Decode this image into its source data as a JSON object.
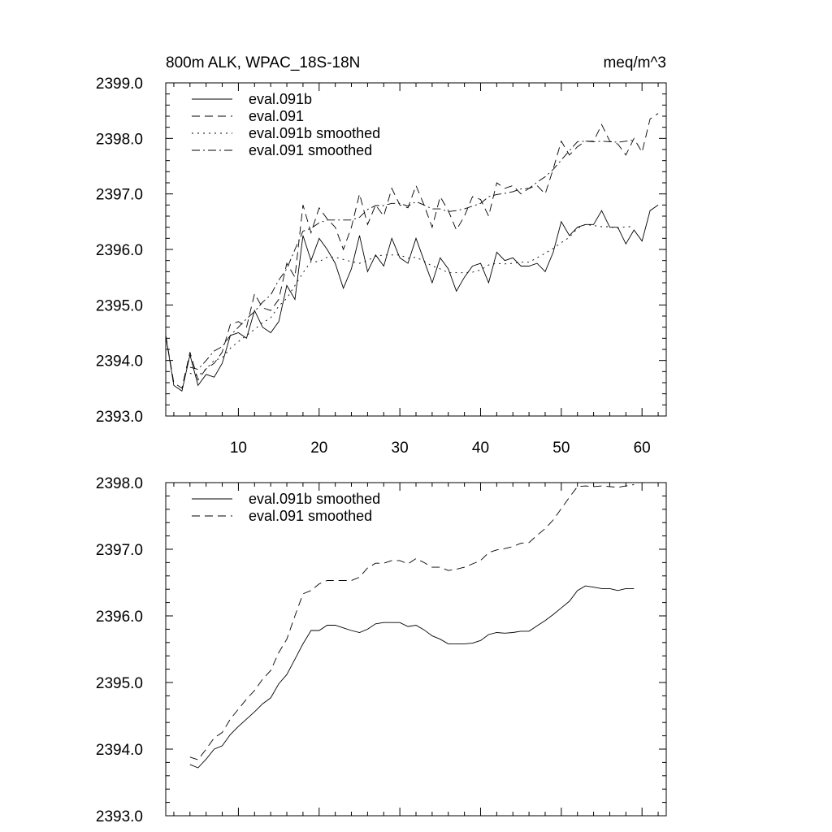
{
  "chart_data": [
    {
      "type": "line",
      "title": "800m ALK, WPAC_18S-18N",
      "units": "meq/m^3",
      "xlim": [
        1,
        63
      ],
      "ylim": [
        2393.0,
        2399.0
      ],
      "x_tick_labels": [
        "10",
        "20",
        "30",
        "40",
        "50",
        "60"
      ],
      "x_ticks": [
        10,
        20,
        30,
        40,
        50,
        60
      ],
      "y_tick_labels": [
        "2393.0",
        "2394.0",
        "2395.0",
        "2396.0",
        "2397.0",
        "2398.0",
        "2399.0"
      ],
      "y_ticks": [
        2393.0,
        2394.0,
        2395.0,
        2396.0,
        2397.0,
        2398.0,
        2399.0
      ],
      "legend_position": "top-left",
      "series": [
        {
          "name": "eval.091b",
          "style": "solid",
          "x": [
            1,
            2,
            3,
            4,
            5,
            6,
            7,
            8,
            9,
            10,
            11,
            12,
            13,
            14,
            15,
            16,
            17,
            18,
            19,
            20,
            21,
            22,
            23,
            24,
            25,
            26,
            27,
            28,
            29,
            30,
            31,
            32,
            33,
            34,
            35,
            36,
            37,
            38,
            39,
            40,
            41,
            42,
            43,
            44,
            45,
            46,
            47,
            48,
            49,
            50,
            51,
            52,
            53,
            54,
            55,
            56,
            57,
            58,
            59,
            60,
            61,
            62
          ],
          "values": [
            2394.45,
            2393.55,
            2393.45,
            2394.1,
            2393.55,
            2393.75,
            2393.7,
            2393.95,
            2394.45,
            2394.5,
            2394.4,
            2394.9,
            2394.6,
            2394.5,
            2394.7,
            2395.35,
            2395.1,
            2396.25,
            2395.8,
            2396.2,
            2396.0,
            2395.75,
            2395.3,
            2395.65,
            2396.25,
            2395.6,
            2395.9,
            2395.7,
            2396.2,
            2395.85,
            2395.75,
            2396.2,
            2395.8,
            2395.4,
            2395.85,
            2395.65,
            2395.25,
            2395.5,
            2395.7,
            2395.75,
            2395.4,
            2395.95,
            2395.8,
            2395.85,
            2395.7,
            2395.7,
            2395.75,
            2395.6,
            2395.95,
            2396.5,
            2396.25,
            2396.4,
            2396.45,
            2396.45,
            2396.7,
            2396.4,
            2396.4,
            2396.1,
            2396.35,
            2396.15,
            2396.7,
            2396.8
          ]
        },
        {
          "name": "eval.091",
          "style": "dashed",
          "x": [
            1,
            2,
            3,
            4,
            5,
            6,
            7,
            8,
            9,
            10,
            11,
            12,
            13,
            14,
            15,
            16,
            17,
            18,
            19,
            20,
            21,
            22,
            23,
            24,
            25,
            26,
            27,
            28,
            29,
            30,
            31,
            32,
            33,
            34,
            35,
            36,
            37,
            38,
            39,
            40,
            41,
            42,
            43,
            44,
            45,
            46,
            47,
            48,
            49,
            50,
            51,
            52,
            53,
            54,
            55,
            56,
            57,
            58,
            59,
            60,
            61,
            62
          ],
          "values": [
            2394.45,
            2393.6,
            2393.5,
            2394.15,
            2393.65,
            2393.85,
            2393.95,
            2394.15,
            2394.65,
            2394.7,
            2394.6,
            2395.2,
            2394.95,
            2394.9,
            2395.1,
            2395.75,
            2395.5,
            2396.8,
            2396.3,
            2396.75,
            2396.55,
            2396.4,
            2396.0,
            2396.4,
            2397.0,
            2396.45,
            2396.8,
            2396.6,
            2397.1,
            2396.8,
            2396.75,
            2397.15,
            2396.8,
            2396.4,
            2396.95,
            2396.7,
            2396.35,
            2396.6,
            2396.95,
            2396.9,
            2396.6,
            2397.2,
            2397.1,
            2397.15,
            2397.0,
            2397.1,
            2397.15,
            2397.0,
            2397.45,
            2397.95,
            2397.7,
            2397.85,
            2397.95,
            2397.95,
            2398.25,
            2397.95,
            2397.9,
            2397.7,
            2398.0,
            2397.75,
            2398.35,
            2398.45
          ]
        },
        {
          "name": "eval.091b smoothed",
          "style": "dotted",
          "x": [
            4,
            5,
            6,
            7,
            8,
            9,
            10,
            11,
            12,
            13,
            14,
            15,
            16,
            17,
            18,
            19,
            20,
            21,
            22,
            23,
            24,
            25,
            26,
            27,
            28,
            29,
            30,
            31,
            32,
            33,
            34,
            35,
            36,
            37,
            38,
            39,
            40,
            41,
            42,
            43,
            44,
            45,
            46,
            47,
            48,
            49,
            50,
            51,
            52,
            53,
            54,
            55,
            56,
            57,
            58,
            59
          ],
          "values": [
            2393.77,
            2393.72,
            2393.85,
            2394.0,
            2394.05,
            2394.22,
            2394.34,
            2394.45,
            2394.56,
            2394.68,
            2394.77,
            2394.98,
            2395.12,
            2395.35,
            2395.58,
            2395.78,
            2395.78,
            2395.86,
            2395.86,
            2395.82,
            2395.78,
            2395.75,
            2395.8,
            2395.88,
            2395.9,
            2395.9,
            2395.9,
            2395.84,
            2395.86,
            2395.79,
            2395.7,
            2395.65,
            2395.58,
            2395.58,
            2395.58,
            2395.59,
            2395.63,
            2395.72,
            2395.75,
            2395.74,
            2395.75,
            2395.77,
            2395.77,
            2395.85,
            2395.93,
            2396.02,
            2396.12,
            2396.22,
            2396.38,
            2396.45,
            2396.43,
            2396.41,
            2396.41,
            2396.38,
            2396.41,
            2396.41
          ]
        },
        {
          "name": "eval.091 smoothed",
          "style": "dash-dot",
          "x": [
            4,
            5,
            6,
            7,
            8,
            9,
            10,
            11,
            12,
            13,
            14,
            15,
            16,
            17,
            18,
            19,
            20,
            21,
            22,
            23,
            24,
            25,
            26,
            27,
            28,
            29,
            30,
            31,
            32,
            33,
            34,
            35,
            36,
            37,
            38,
            39,
            40,
            41,
            42,
            43,
            44,
            45,
            46,
            47,
            48,
            49,
            50,
            51,
            52,
            53,
            54,
            55,
            56,
            57,
            58,
            59
          ],
          "values": [
            2393.88,
            2393.84,
            2394.0,
            2394.17,
            2394.25,
            2394.45,
            2394.6,
            2394.75,
            2394.88,
            2395.05,
            2395.18,
            2395.45,
            2395.65,
            2396.0,
            2396.33,
            2396.38,
            2396.48,
            2396.53,
            2396.53,
            2396.53,
            2396.53,
            2396.58,
            2396.72,
            2396.79,
            2396.79,
            2396.83,
            2396.83,
            2396.78,
            2396.86,
            2396.8,
            2396.73,
            2396.73,
            2396.68,
            2396.7,
            2396.73,
            2396.78,
            2396.83,
            2396.95,
            2396.99,
            2397.01,
            2397.04,
            2397.09,
            2397.1,
            2397.21,
            2397.31,
            2397.44,
            2397.61,
            2397.78,
            2397.94,
            2397.95,
            2397.94,
            2397.95,
            2397.94,
            2397.93,
            2397.95,
            2397.97
          ]
        }
      ]
    },
    {
      "type": "line",
      "title": "",
      "units": "",
      "xlim": [
        1,
        63
      ],
      "ylim": [
        2393.0,
        2398.0
      ],
      "x_tick_labels": [],
      "x_ticks": [
        10,
        20,
        30,
        40,
        50,
        60
      ],
      "y_tick_labels": [
        "2393.0",
        "2394.0",
        "2395.0",
        "2396.0",
        "2397.0",
        "2398.0"
      ],
      "y_ticks": [
        2393.0,
        2394.0,
        2395.0,
        2396.0,
        2397.0,
        2398.0
      ],
      "legend_position": "top-left",
      "series": [
        {
          "name": "eval.091b smoothed",
          "style": "solid",
          "x": [
            4,
            5,
            6,
            7,
            8,
            9,
            10,
            11,
            12,
            13,
            14,
            15,
            16,
            17,
            18,
            19,
            20,
            21,
            22,
            23,
            24,
            25,
            26,
            27,
            28,
            29,
            30,
            31,
            32,
            33,
            34,
            35,
            36,
            37,
            38,
            39,
            40,
            41,
            42,
            43,
            44,
            45,
            46,
            47,
            48,
            49,
            50,
            51,
            52,
            53,
            54,
            55,
            56,
            57,
            58,
            59
          ],
          "values": [
            2393.77,
            2393.72,
            2393.85,
            2394.0,
            2394.05,
            2394.22,
            2394.34,
            2394.45,
            2394.56,
            2394.68,
            2394.77,
            2394.98,
            2395.12,
            2395.35,
            2395.58,
            2395.78,
            2395.78,
            2395.86,
            2395.86,
            2395.82,
            2395.78,
            2395.75,
            2395.8,
            2395.88,
            2395.9,
            2395.9,
            2395.9,
            2395.84,
            2395.86,
            2395.79,
            2395.7,
            2395.65,
            2395.58,
            2395.58,
            2395.58,
            2395.59,
            2395.63,
            2395.72,
            2395.75,
            2395.74,
            2395.75,
            2395.77,
            2395.77,
            2395.85,
            2395.93,
            2396.02,
            2396.12,
            2396.22,
            2396.38,
            2396.45,
            2396.43,
            2396.41,
            2396.41,
            2396.38,
            2396.41,
            2396.41
          ]
        },
        {
          "name": "eval.091 smoothed",
          "style": "dashed",
          "x": [
            4,
            5,
            6,
            7,
            8,
            9,
            10,
            11,
            12,
            13,
            14,
            15,
            16,
            17,
            18,
            19,
            20,
            21,
            22,
            23,
            24,
            25,
            26,
            27,
            28,
            29,
            30,
            31,
            32,
            33,
            34,
            35,
            36,
            37,
            38,
            39,
            40,
            41,
            42,
            43,
            44,
            45,
            46,
            47,
            48,
            49,
            50,
            51,
            52,
            53,
            54,
            55,
            56,
            57,
            58,
            59
          ],
          "values": [
            2393.88,
            2393.84,
            2394.0,
            2394.17,
            2394.25,
            2394.45,
            2394.6,
            2394.75,
            2394.88,
            2395.05,
            2395.18,
            2395.45,
            2395.65,
            2396.0,
            2396.33,
            2396.38,
            2396.48,
            2396.53,
            2396.53,
            2396.53,
            2396.53,
            2396.58,
            2396.72,
            2396.79,
            2396.79,
            2396.83,
            2396.83,
            2396.78,
            2396.86,
            2396.8,
            2396.73,
            2396.73,
            2396.68,
            2396.7,
            2396.73,
            2396.78,
            2396.83,
            2396.95,
            2396.99,
            2397.01,
            2397.04,
            2397.09,
            2397.1,
            2397.21,
            2397.31,
            2397.44,
            2397.61,
            2397.78,
            2397.94,
            2397.95,
            2397.94,
            2397.95,
            2397.94,
            2397.93,
            2397.95,
            2397.97
          ]
        }
      ]
    }
  ]
}
